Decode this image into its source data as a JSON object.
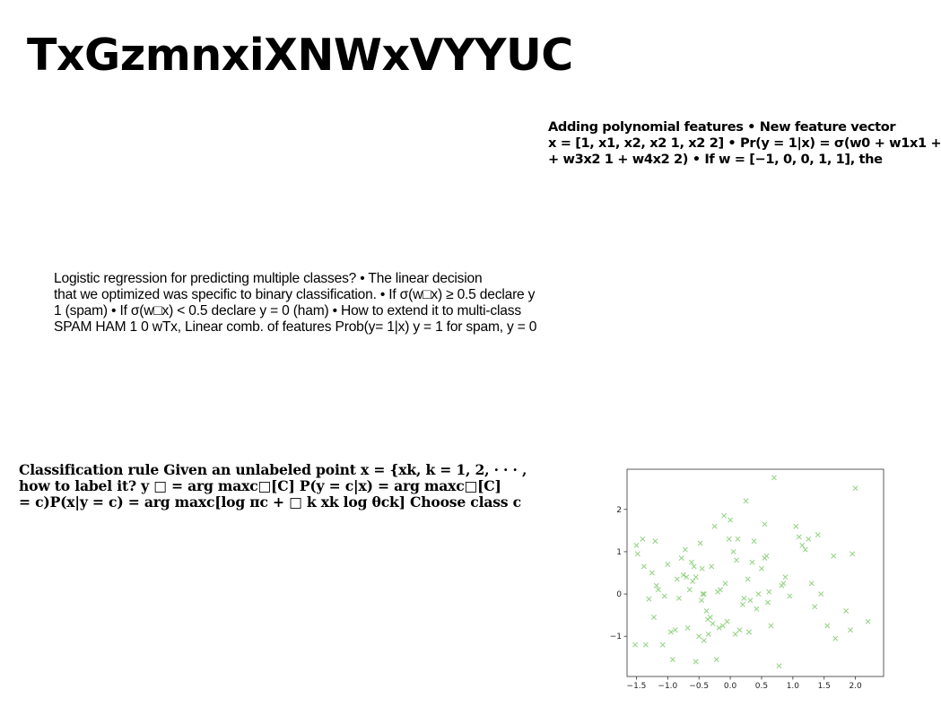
{
  "title": "TxGzmnxiXNWxVYYUC",
  "poly_block": {
    "lines": [
      "Adding polynomial features • New feature vector",
      "x = [1, x1, x2, x2 1, x2 2] • Pr(y = 1|x) = σ(w0 + w1x1 +",
      "+ w3x2 1 + w4x2 2) • If w = [−1, 0, 0, 1, 1], the"
    ]
  },
  "logit_block": {
    "lines": [
      "Logistic regression for predicting multiple classes? • The linear decision",
      "that we optimized was specific to binary classification. • If σ(w□x) ≥ 0.5 declare y",
      "1 (spam) • If σ(w□x) < 0.5 declare y = 0 (ham) • How to extend it to multi-class",
      "SPAM HAM 1 0 wTx, Linear comb. of features Prob(y= 1|x) y = 1 for spam, y = 0"
    ]
  },
  "classrule_block": {
    "lines": [
      "Classification rule Given an unlabeled point x = {xk, k = 1, 2, · · · ,",
      "how to label it? y □ = arg maxc□[C] P(y = c|x) = arg maxc□[C]",
      "= c)P(x|y = c) = arg maxc[log πc + □ k xk log θck] Choose class c"
    ]
  },
  "chart_data": {
    "type": "scatter",
    "marker": "x",
    "color": "#8fd17f",
    "grid": false,
    "xlim": [
      -1.65,
      2.45
    ],
    "ylim": [
      -1.95,
      2.95
    ],
    "xticks": [
      "−1.5",
      "−1.0",
      "−0.5",
      "0.0",
      "0.5",
      "1.0",
      "1.5",
      "2.0"
    ],
    "xtick_values": [
      -1.5,
      -1.0,
      -0.5,
      0.0,
      0.5,
      1.0,
      1.5,
      2.0
    ],
    "yticks": [
      "−1",
      "0",
      "1",
      "2"
    ],
    "ytick_values": [
      -1,
      0,
      1,
      2
    ],
    "x": [
      -1.52,
      -1.4,
      -1.2,
      -1.5,
      -1.38,
      -1.3,
      -1.25,
      -1.22,
      -1.15,
      -1.08,
      -1.0,
      -0.95,
      -0.92,
      -0.88,
      -0.82,
      -0.78,
      -0.72,
      -0.7,
      -0.68,
      -0.65,
      -0.62,
      -0.6,
      -0.55,
      -0.55,
      -0.5,
      -0.48,
      -0.46,
      -0.45,
      -0.42,
      -0.42,
      -0.38,
      -0.36,
      -0.35,
      -0.3,
      -0.28,
      -0.25,
      -0.22,
      -0.18,
      -0.16,
      -0.12,
      -0.1,
      -0.08,
      -0.02,
      0.0,
      0.05,
      0.08,
      0.1,
      0.12,
      0.15,
      0.2,
      0.22,
      0.25,
      0.3,
      0.32,
      0.35,
      0.38,
      0.42,
      0.45,
      0.5,
      0.55,
      0.55,
      0.58,
      0.6,
      0.62,
      0.7,
      0.78,
      0.82,
      0.85,
      0.88,
      0.95,
      1.1,
      1.15,
      1.2,
      1.25,
      1.3,
      1.35,
      1.4,
      1.45,
      1.55,
      1.65,
      1.68,
      1.85,
      1.92,
      1.95,
      2.0,
      2.2,
      -1.48,
      -1.35,
      -1.18,
      -1.05,
      -0.85,
      -0.75,
      -0.58,
      -0.44,
      -0.32,
      -0.2,
      -0.05,
      0.28,
      0.65,
      1.05
    ],
    "y": [
      -1.2,
      1.3,
      1.25,
      1.15,
      0.65,
      -0.12,
      0.5,
      -0.55,
      0.1,
      -1.2,
      0.7,
      -0.9,
      -1.55,
      -0.85,
      -0.1,
      0.85,
      1.05,
      0.4,
      -0.8,
      0.1,
      0.75,
      0.3,
      -1.6,
      0.4,
      -1.0,
      1.2,
      -0.15,
      0.6,
      -1.1,
      0.0,
      -0.4,
      -0.6,
      -0.95,
      0.65,
      -0.7,
      1.6,
      -1.55,
      -0.8,
      0.1,
      -0.75,
      1.85,
      0.25,
      1.3,
      1.75,
      1.0,
      -0.95,
      0.8,
      1.3,
      -0.85,
      -0.25,
      -0.1,
      2.2,
      -0.9,
      -0.15,
      0.75,
      1.25,
      -0.35,
      0.0,
      0.6,
      1.65,
      0.85,
      0.9,
      -0.2,
      0.05,
      2.75,
      -1.7,
      0.2,
      0.25,
      0.4,
      -0.05,
      1.35,
      1.15,
      1.05,
      1.3,
      0.25,
      -0.3,
      1.4,
      0.0,
      -0.75,
      0.9,
      -1.05,
      -0.4,
      -0.85,
      0.95,
      2.5,
      -0.65,
      0.95,
      -1.2,
      0.2,
      -0.05,
      0.35,
      0.45,
      0.65,
      0.0,
      -0.55,
      0.05,
      -0.65,
      0.35,
      -0.75,
      1.6
    ]
  }
}
